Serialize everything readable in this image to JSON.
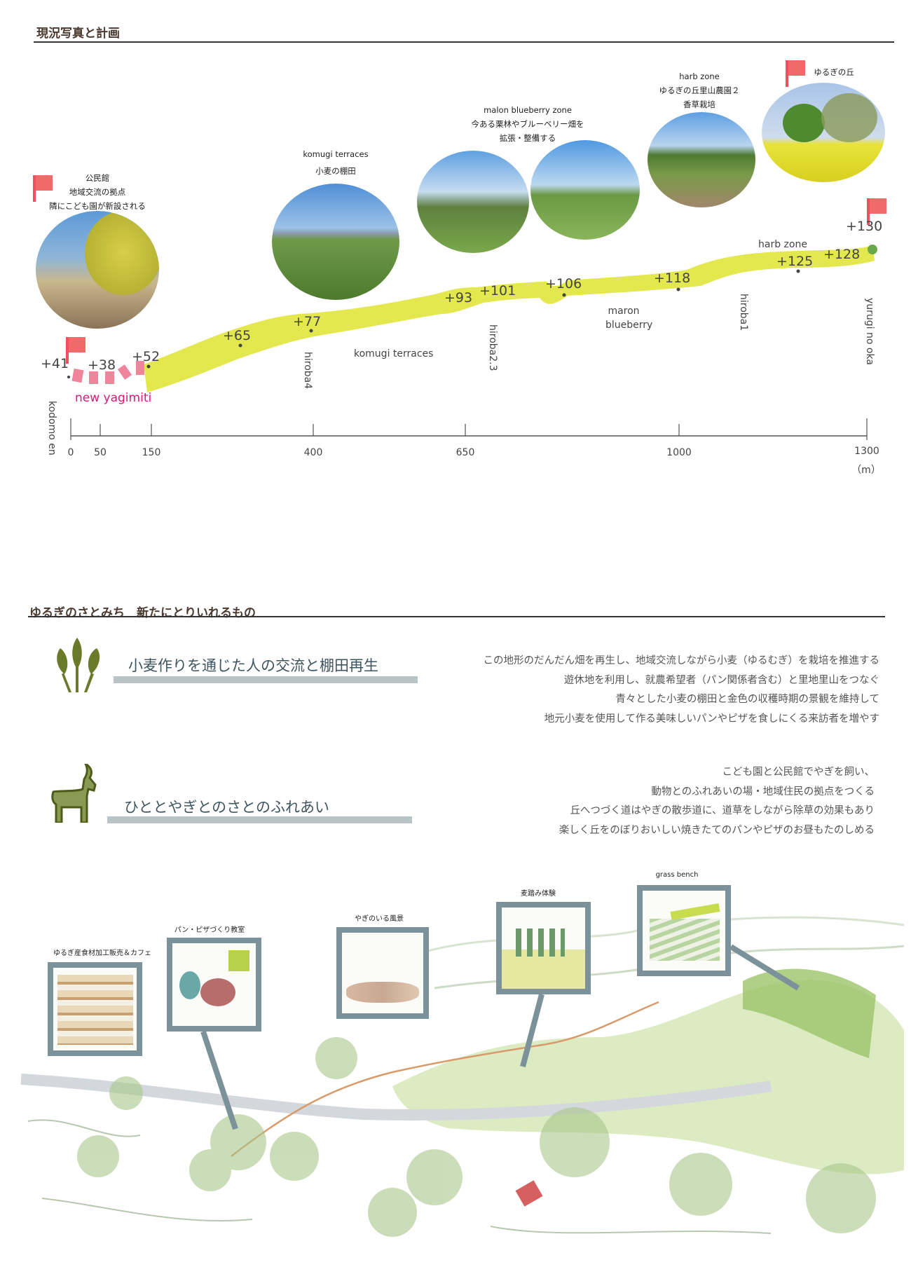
{
  "section1": {
    "title": "現況写真と計画",
    "photos": [
      {
        "id": "kominkan",
        "caption": [
          "公民館",
          "地域交流の拠点",
          "隣にこども園が新設される"
        ]
      },
      {
        "id": "komugi",
        "caption": [
          "komugi terraces",
          "小麦の棚田"
        ]
      },
      {
        "id": "malon",
        "caption": [
          "malon  blueberry zone",
          "今ある栗林やブルーベリー畑を",
          "拡張・整備する"
        ]
      },
      {
        "id": "harb",
        "caption": [
          "harb zone",
          "ゆるぎの丘里山農園２",
          "香草栽培"
        ]
      },
      {
        "id": "yurugi",
        "caption": [
          "ゆるぎの丘"
        ]
      }
    ],
    "profile": {
      "elevations": [
        "+41",
        "+38",
        "+52",
        "+65",
        "+77",
        "+93",
        "+101",
        "+106",
        "+118",
        "+125",
        "+128",
        "+130"
      ],
      "zones": [
        "komugi terraces",
        "maron",
        "blueberry",
        "harb zone",
        "new yagimiti"
      ],
      "places": [
        "kodomo en",
        "hiroba4",
        "hiroba2.3",
        "hiroba1",
        "yurugi no oka"
      ],
      "axis_ticks": [
        "0",
        "50",
        "150",
        "400",
        "650",
        "1000",
        "1300"
      ],
      "axis_unit": "（m）",
      "band_color": "#dfe63a",
      "new_path_color": "#f0849a",
      "new_path_label_color": "#e0157a"
    }
  },
  "section2": {
    "title": "ゆるぎのさとみち　新たにとりいれるもの",
    "items": [
      {
        "icon": "wheat-icon",
        "heading": "小麦作りを通じた人の交流と棚田再生",
        "lines": [
          "この地形のだんだん畑を再生し、地域交流しながら小麦（ゆるむぎ）を栽培を推進する",
          "遊休地を利用し、就農希望者（パン関係者含む）と里地里山をつなぐ",
          "青々とした小麦の棚田と金色の収穫時期の景観を維持して",
          "地元小麦を使用して作る美味しいパンやピザを食しにくる来訪者を増やす"
        ]
      },
      {
        "icon": "goat-icon",
        "heading": "ひととやぎとのさとのふれあい",
        "lines": [
          "こども園と公民館でやぎを飼い、",
          "動物とのふれあいの場・地域住民の拠点をつくる",
          "丘へつづく道はやぎの散歩道に、道草をしながら除草の効果もあり",
          "楽しく丘をのぼりおいしい焼きたてのパンやピザのお昼もたのしめる"
        ]
      }
    ],
    "accent": "#6b7a2a"
  },
  "illustration": {
    "frames": [
      "ゆるぎ産食材加工販売＆カフェ",
      "パン・ピザづくり教室",
      "やぎのいる風景",
      "麦踏み体験",
      "grass bench"
    ],
    "frame_color": "#7b929a"
  }
}
